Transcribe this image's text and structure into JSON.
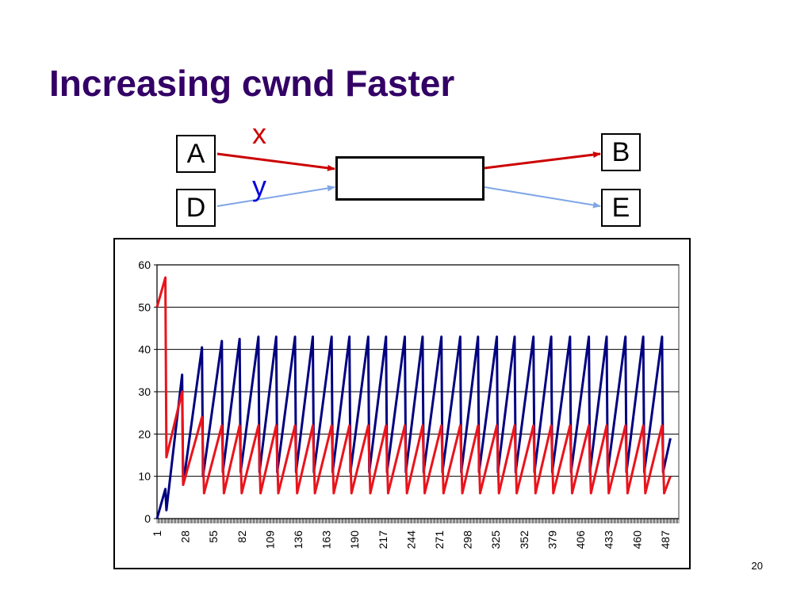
{
  "slide": {
    "title": "Increasing cwnd Faster",
    "page_number": "20"
  },
  "diagram": {
    "nodes": {
      "a": "A",
      "b": "B",
      "d": "D",
      "e": "E"
    },
    "flows": {
      "x": "x",
      "y": "y"
    },
    "colors": {
      "x": "#cc0000",
      "y": "#7fa6e6"
    }
  },
  "chart_data": {
    "type": "line",
    "title": "",
    "xlabel": "",
    "ylabel": "",
    "ylim": [
      0,
      60
    ],
    "yticks": [
      0,
      10,
      20,
      30,
      40,
      50,
      60
    ],
    "xlim": [
      1,
      500
    ],
    "xticks": [
      1,
      28,
      55,
      82,
      109,
      136,
      163,
      190,
      217,
      244,
      271,
      298,
      325,
      352,
      379,
      406,
      433,
      460,
      487
    ],
    "grid": true,
    "legend": "none",
    "series": [
      {
        "color": "#000080",
        "points": [
          [
            1,
            0
          ],
          [
            9,
            7
          ],
          [
            10,
            2
          ],
          [
            25,
            34
          ],
          [
            26,
            8
          ],
          [
            44,
            40.5
          ],
          [
            45,
            10
          ],
          [
            63,
            42
          ],
          [
            64,
            11
          ],
          [
            80,
            42.5
          ],
          [
            81,
            11
          ],
          [
            98,
            43
          ],
          [
            99,
            11
          ],
          [
            115,
            43
          ],
          [
            116,
            11
          ],
          [
            133,
            43
          ],
          [
            134,
            11
          ],
          [
            150,
            43
          ],
          [
            151,
            11
          ],
          [
            168,
            43
          ],
          [
            169,
            11
          ],
          [
            185,
            43
          ],
          [
            186,
            11
          ],
          [
            203,
            43
          ],
          [
            204,
            11
          ],
          [
            220,
            43
          ],
          [
            221,
            11
          ],
          [
            238,
            43
          ],
          [
            239,
            11
          ],
          [
            255,
            43
          ],
          [
            256,
            11
          ],
          [
            273,
            43
          ],
          [
            274,
            11
          ],
          [
            291,
            43
          ],
          [
            292,
            11
          ],
          [
            308,
            43
          ],
          [
            309,
            11
          ],
          [
            326,
            43
          ],
          [
            327,
            11
          ],
          [
            343,
            43
          ],
          [
            344,
            11
          ],
          [
            361,
            43
          ],
          [
            362,
            11
          ],
          [
            378,
            43
          ],
          [
            379,
            11
          ],
          [
            396,
            43
          ],
          [
            397,
            11
          ],
          [
            414,
            43
          ],
          [
            415,
            11
          ],
          [
            431,
            43
          ],
          [
            432,
            11
          ],
          [
            449,
            43
          ],
          [
            450,
            11
          ],
          [
            466,
            43
          ],
          [
            467,
            11
          ],
          [
            484,
            43
          ],
          [
            485,
            11
          ],
          [
            492,
            19
          ]
        ]
      },
      {
        "color": "#e8141c",
        "points": [
          [
            1,
            50
          ],
          [
            9,
            57
          ],
          [
            10,
            14.5
          ],
          [
            25,
            30
          ],
          [
            26,
            8
          ],
          [
            44,
            24
          ],
          [
            46,
            6
          ],
          [
            63,
            22
          ],
          [
            65,
            6
          ],
          [
            80,
            22
          ],
          [
            82,
            6
          ],
          [
            98,
            22
          ],
          [
            100,
            6
          ],
          [
            115,
            22
          ],
          [
            117,
            6
          ],
          [
            133,
            22
          ],
          [
            135,
            6
          ],
          [
            150,
            22
          ],
          [
            152,
            6
          ],
          [
            168,
            22
          ],
          [
            170,
            6
          ],
          [
            185,
            22
          ],
          [
            187,
            6
          ],
          [
            203,
            22
          ],
          [
            205,
            6
          ],
          [
            220,
            22
          ],
          [
            222,
            6
          ],
          [
            238,
            22
          ],
          [
            240,
            6
          ],
          [
            255,
            22
          ],
          [
            257,
            6
          ],
          [
            273,
            22
          ],
          [
            275,
            6
          ],
          [
            291,
            22
          ],
          [
            293,
            6
          ],
          [
            308,
            22
          ],
          [
            310,
            6
          ],
          [
            326,
            22
          ],
          [
            328,
            6
          ],
          [
            343,
            22
          ],
          [
            345,
            6
          ],
          [
            361,
            22
          ],
          [
            363,
            6
          ],
          [
            378,
            22
          ],
          [
            380,
            6
          ],
          [
            396,
            22
          ],
          [
            398,
            6
          ],
          [
            414,
            22
          ],
          [
            416,
            6
          ],
          [
            431,
            22
          ],
          [
            433,
            6
          ],
          [
            449,
            22
          ],
          [
            451,
            6
          ],
          [
            466,
            22
          ],
          [
            468,
            6
          ],
          [
            484,
            22
          ],
          [
            486,
            6
          ],
          [
            492,
            10
          ]
        ]
      }
    ]
  }
}
